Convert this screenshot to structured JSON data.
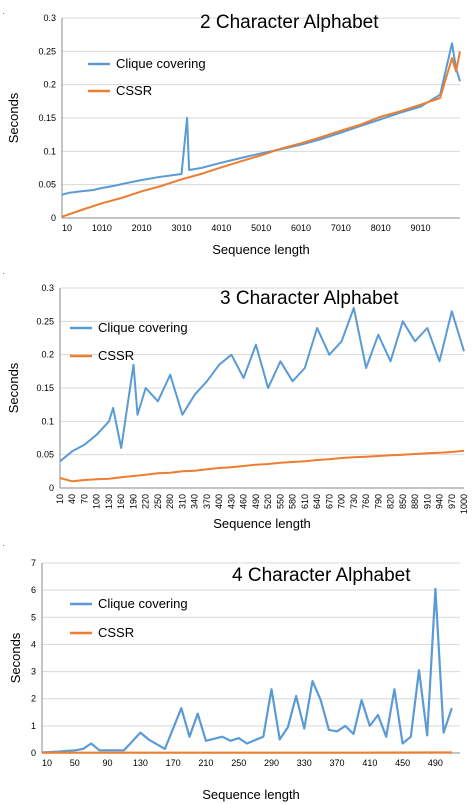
{
  "colors": {
    "clique": "#5B9BD5",
    "cssr": "#ED7D31"
  },
  "chart_data": [
    {
      "type": "line",
      "title": "2 Character Alphabet",
      "xlabel": "Sequence length",
      "ylabel": "Seconds",
      "ylim": [
        0,
        0.3
      ],
      "yticks": [
        "0",
        "0.05",
        "0.1",
        "0.15",
        "0.2",
        "0.25",
        "0.3"
      ],
      "xticks": [
        "10",
        "1010",
        "2010",
        "3010",
        "4010",
        "5010",
        "6010",
        "7010",
        "8010",
        "9010"
      ],
      "xrange": [
        10,
        10000
      ],
      "legend_position": "upper-left",
      "series": [
        {
          "name": "Clique covering",
          "points": [
            [
              10,
              0.035
            ],
            [
              200,
              0.038
            ],
            [
              500,
              0.04
            ],
            [
              800,
              0.042
            ],
            [
              1010,
              0.045
            ],
            [
              1300,
              0.048
            ],
            [
              1600,
              0.052
            ],
            [
              2010,
              0.057
            ],
            [
              2500,
              0.062
            ],
            [
              3010,
              0.066
            ],
            [
              3150,
              0.15
            ],
            [
              3200,
              0.072
            ],
            [
              3500,
              0.075
            ],
            [
              4010,
              0.083
            ],
            [
              4500,
              0.09
            ],
            [
              5010,
              0.097
            ],
            [
              5500,
              0.103
            ],
            [
              6010,
              0.11
            ],
            [
              6500,
              0.118
            ],
            [
              7010,
              0.128
            ],
            [
              7500,
              0.138
            ],
            [
              8010,
              0.148
            ],
            [
              8500,
              0.158
            ],
            [
              9010,
              0.167
            ],
            [
              9500,
              0.185
            ],
            [
              9800,
              0.262
            ],
            [
              9900,
              0.225
            ],
            [
              10000,
              0.205
            ]
          ]
        },
        {
          "name": "CSSR",
          "points": [
            [
              10,
              0.002
            ],
            [
              500,
              0.012
            ],
            [
              1010,
              0.022
            ],
            [
              1500,
              0.03
            ],
            [
              2010,
              0.04
            ],
            [
              2500,
              0.048
            ],
            [
              3010,
              0.058
            ],
            [
              3500,
              0.066
            ],
            [
              4010,
              0.076
            ],
            [
              4500,
              0.085
            ],
            [
              5010,
              0.094
            ],
            [
              5500,
              0.104
            ],
            [
              6010,
              0.112
            ],
            [
              6500,
              0.121
            ],
            [
              7010,
              0.131
            ],
            [
              7500,
              0.14
            ],
            [
              8010,
              0.152
            ],
            [
              8500,
              0.16
            ],
            [
              9010,
              0.17
            ],
            [
              9500,
              0.18
            ],
            [
              9800,
              0.24
            ],
            [
              9900,
              0.22
            ],
            [
              10000,
              0.25
            ]
          ]
        }
      ]
    },
    {
      "type": "line",
      "title": "3 Character Alphabet",
      "xlabel": "Sequence length",
      "ylabel": "Seconds",
      "ylim": [
        0,
        0.3
      ],
      "yticks": [
        "0",
        "0.05",
        "0.1",
        "0.15",
        "0.2",
        "0.25",
        "0.3"
      ],
      "xticks": [
        "10",
        "40",
        "70",
        "100",
        "130",
        "160",
        "190",
        "220",
        "250",
        "280",
        "310",
        "340",
        "370",
        "400",
        "430",
        "460",
        "490",
        "520",
        "550",
        "580",
        "610",
        "640",
        "670",
        "700",
        "730",
        "760",
        "790",
        "820",
        "850",
        "880",
        "910",
        "940",
        "970",
        "1000"
      ],
      "xrange": [
        10,
        1000
      ],
      "legend_position": "upper-left",
      "series": [
        {
          "name": "Clique covering",
          "points": [
            [
              10,
              0.04
            ],
            [
              40,
              0.055
            ],
            [
              70,
              0.065
            ],
            [
              100,
              0.08
            ],
            [
              130,
              0.1
            ],
            [
              140,
              0.12
            ],
            [
              160,
              0.06
            ],
            [
              190,
              0.185
            ],
            [
              200,
              0.11
            ],
            [
              220,
              0.15
            ],
            [
              250,
              0.13
            ],
            [
              280,
              0.17
            ],
            [
              310,
              0.11
            ],
            [
              340,
              0.14
            ],
            [
              370,
              0.16
            ],
            [
              400,
              0.185
            ],
            [
              430,
              0.2
            ],
            [
              460,
              0.165
            ],
            [
              490,
              0.215
            ],
            [
              520,
              0.15
            ],
            [
              550,
              0.19
            ],
            [
              580,
              0.16
            ],
            [
              610,
              0.18
            ],
            [
              640,
              0.24
            ],
            [
              670,
              0.2
            ],
            [
              700,
              0.22
            ],
            [
              730,
              0.27
            ],
            [
              760,
              0.18
            ],
            [
              790,
              0.23
            ],
            [
              820,
              0.19
            ],
            [
              850,
              0.25
            ],
            [
              880,
              0.22
            ],
            [
              910,
              0.24
            ],
            [
              940,
              0.19
            ],
            [
              970,
              0.265
            ],
            [
              1000,
              0.205
            ]
          ]
        },
        {
          "name": "CSSR",
          "points": [
            [
              10,
              0.015
            ],
            [
              40,
              0.01
            ],
            [
              70,
              0.012
            ],
            [
              100,
              0.013
            ],
            [
              130,
              0.014
            ],
            [
              160,
              0.016
            ],
            [
              190,
              0.018
            ],
            [
              220,
              0.02
            ],
            [
              250,
              0.022
            ],
            [
              280,
              0.023
            ],
            [
              310,
              0.025
            ],
            [
              340,
              0.026
            ],
            [
              370,
              0.028
            ],
            [
              400,
              0.03
            ],
            [
              430,
              0.031
            ],
            [
              460,
              0.033
            ],
            [
              490,
              0.035
            ],
            [
              520,
              0.036
            ],
            [
              550,
              0.038
            ],
            [
              580,
              0.039
            ],
            [
              610,
              0.04
            ],
            [
              640,
              0.042
            ],
            [
              670,
              0.043
            ],
            [
              700,
              0.045
            ],
            [
              730,
              0.046
            ],
            [
              760,
              0.047
            ],
            [
              790,
              0.048
            ],
            [
              820,
              0.049
            ],
            [
              850,
              0.05
            ],
            [
              880,
              0.051
            ],
            [
              910,
              0.052
            ],
            [
              940,
              0.053
            ],
            [
              970,
              0.054
            ],
            [
              1000,
              0.056
            ]
          ]
        }
      ]
    },
    {
      "type": "line",
      "title": "4 Character Alphabet",
      "xlabel": "Sequence length",
      "ylabel": "Seconds",
      "ylim": [
        0,
        7
      ],
      "yticks": [
        "0",
        "1",
        "2",
        "3",
        "4",
        "5",
        "6",
        "7"
      ],
      "xticks": [
        "10",
        "50",
        "90",
        "130",
        "170",
        "210",
        "250",
        "290",
        "330",
        "370",
        "410",
        "450",
        "490"
      ],
      "xrange": [
        10,
        520
      ],
      "legend_position": "upper-left",
      "series": [
        {
          "name": "Clique covering",
          "points": [
            [
              10,
              0.02
            ],
            [
              30,
              0.05
            ],
            [
              50,
              0.1
            ],
            [
              60,
              0.15
            ],
            [
              70,
              0.35
            ],
            [
              80,
              0.1
            ],
            [
              110,
              0.1
            ],
            [
              130,
              0.75
            ],
            [
              140,
              0.5
            ],
            [
              160,
              0.15
            ],
            [
              180,
              1.65
            ],
            [
              190,
              0.6
            ],
            [
              200,
              1.45
            ],
            [
              210,
              0.45
            ],
            [
              230,
              0.6
            ],
            [
              240,
              0.45
            ],
            [
              250,
              0.55
            ],
            [
              260,
              0.35
            ],
            [
              280,
              0.6
            ],
            [
              290,
              2.35
            ],
            [
              300,
              0.5
            ],
            [
              310,
              0.95
            ],
            [
              320,
              2.1
            ],
            [
              330,
              0.9
            ],
            [
              340,
              2.65
            ],
            [
              350,
              1.95
            ],
            [
              360,
              0.85
            ],
            [
              370,
              0.8
            ],
            [
              380,
              1.0
            ],
            [
              390,
              0.7
            ],
            [
              400,
              1.95
            ],
            [
              410,
              1.0
            ],
            [
              420,
              1.4
            ],
            [
              430,
              0.6
            ],
            [
              440,
              2.35
            ],
            [
              450,
              0.35
            ],
            [
              460,
              0.6
            ],
            [
              470,
              3.05
            ],
            [
              480,
              0.65
            ],
            [
              490,
              6.05
            ],
            [
              500,
              0.75
            ],
            [
              510,
              1.65
            ]
          ]
        },
        {
          "name": "CSSR",
          "points": [
            [
              10,
              0.01
            ],
            [
              100,
              0.01
            ],
            [
              200,
              0.01
            ],
            [
              300,
              0.01
            ],
            [
              400,
              0.01
            ],
            [
              510,
              0.02
            ]
          ]
        }
      ]
    }
  ]
}
